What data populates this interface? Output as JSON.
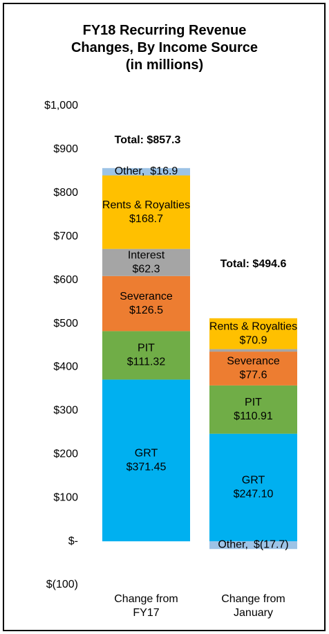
{
  "chart_data": {
    "type": "stacked-bar",
    "title": "FY18 Recurring Revenue Changes, By Income Source (in millions)",
    "categories": [
      "Change from FY17",
      "Change from January"
    ],
    "series": [
      {
        "name": "GRT",
        "color": "#00b0f0",
        "values": [
          371.45,
          247.1
        ],
        "value_labels": [
          "$371.45",
          "$247.10"
        ]
      },
      {
        "name": "PIT",
        "color": "#70ad47",
        "values": [
          111.32,
          110.91
        ],
        "value_labels": [
          "$111.32",
          "$110.91"
        ]
      },
      {
        "name": "Severance",
        "color": "#ed7d31",
        "values": [
          126.5,
          77.6
        ],
        "value_labels": [
          "$126.5",
          "$77.6"
        ]
      },
      {
        "name": "Interest",
        "color": "#a5a5a5",
        "values": [
          62.3,
          5.8
        ],
        "value_labels": [
          "$62.3",
          null
        ]
      },
      {
        "name": "Rents & Royalties",
        "color": "#ffc000",
        "values": [
          168.7,
          70.9
        ],
        "value_labels": [
          "$168.7",
          "$70.9"
        ]
      },
      {
        "name": "Other,",
        "color": "#9dc3e6",
        "values": [
          16.9,
          -17.7
        ],
        "value_labels": [
          "$16.9",
          "$(17.7)"
        ]
      }
    ],
    "totals": [
      "Total: $857.3",
      "Total: $494.6"
    ],
    "ylim": [
      -100,
      1000
    ],
    "yticks": [
      {
        "value": -100,
        "label": "$(100)"
      },
      {
        "value": 0,
        "label": "$-"
      },
      {
        "value": 100,
        "label": "$100"
      },
      {
        "value": 200,
        "label": "$200"
      },
      {
        "value": 300,
        "label": "$300"
      },
      {
        "value": 400,
        "label": "$400"
      },
      {
        "value": 500,
        "label": "$500"
      },
      {
        "value": 600,
        "label": "$600"
      },
      {
        "value": 700,
        "label": "$700"
      },
      {
        "value": 800,
        "label": "$800"
      },
      {
        "value": 900,
        "label": "$900"
      },
      {
        "value": 1000,
        "label": "$1,000"
      }
    ]
  }
}
